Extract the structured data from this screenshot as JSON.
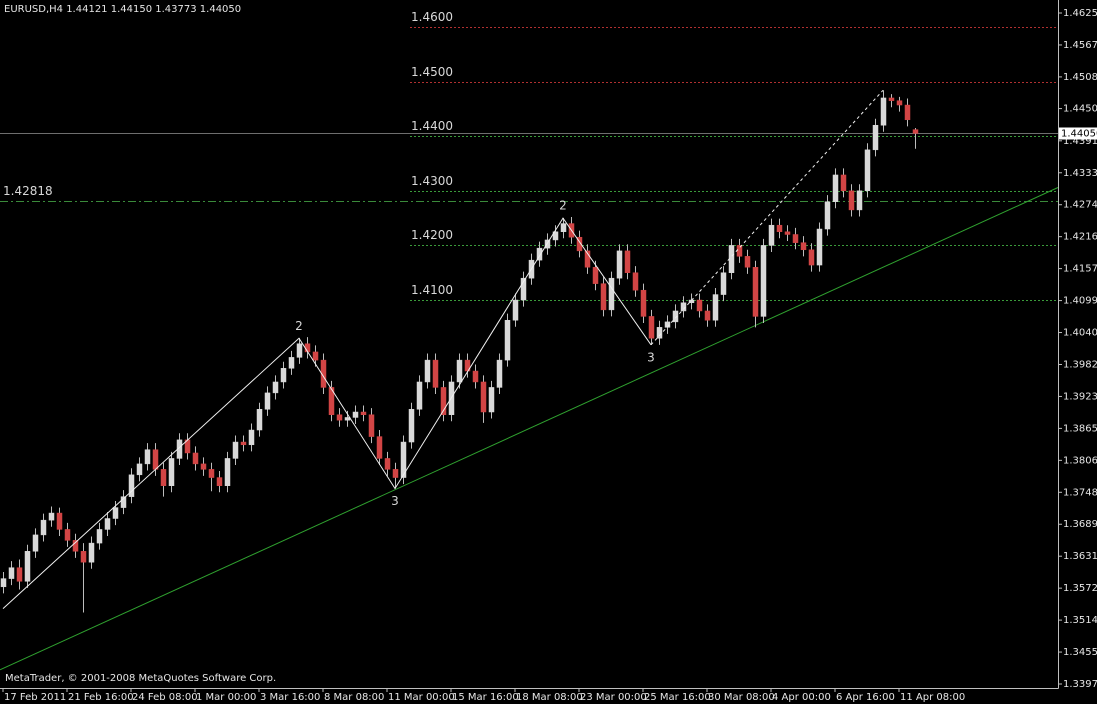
{
  "chart_data": {
    "type": "candlestick",
    "title": "EURUSD,H4  1.44121 1.44150 1.43773 1.44050",
    "footer": "MetaTrader, © 2001-2008 MetaQuotes Software Corp.",
    "up_color": "#d9d9d9",
    "down_color": "#d24545",
    "wick_color": "#bdbdbd",
    "ylim": [
      1.33897,
      1.46493
    ],
    "yticks": [
      1.46255,
      {
        "value": 1.4567,
        "label": "1.45670"
      },
      1.45085,
      1.44505,
      1.43915,
      {
        "value": 1.4333,
        "label": "1.43330"
      },
      1.42745,
      {
        "value": 1.4216,
        "label": "1.42160"
      },
      1.41575,
      {
        "value": 1.4099,
        "label": "1.40990"
      },
      1.40405,
      {
        "value": 1.3982,
        "label": "1.39820"
      },
      1.39235,
      {
        "value": 1.3865,
        "label": "1.38650"
      },
      1.38065,
      {
        "value": 1.3748,
        "label": "1.37480"
      },
      1.36895,
      {
        "value": 1.3631,
        "label": "1.36310"
      },
      1.35725,
      {
        "value": 1.3514,
        "label": "1.35140"
      },
      1.34555,
      {
        "value": 1.3397,
        "label": "1.33970"
      }
    ],
    "xlim": [
      -0.375,
      131.875
    ],
    "xticks": [
      {
        "value": 0,
        "label": "17 Feb 2011"
      },
      {
        "value": 8,
        "label": "21 Feb 16:00"
      },
      {
        "value": 16,
        "label": "24 Feb 08:00"
      },
      {
        "value": 24,
        "label": "1 Mar 00:00"
      },
      {
        "value": 32,
        "label": "3 Mar 16:00"
      },
      {
        "value": 40,
        "label": "8 Mar 08:00"
      },
      {
        "value": 48,
        "label": "11 Mar 00:00"
      },
      {
        "value": 56,
        "label": "15 Mar 16:00"
      },
      {
        "value": 64,
        "label": "18 Mar 08:00"
      },
      {
        "value": 72,
        "label": "23 Mar 00:00"
      },
      {
        "value": 80,
        "label": "25 Mar 16:00"
      },
      {
        "value": 88,
        "label": "30 Mar 08:00"
      },
      {
        "value": 96,
        "label": "4 Apr 00:00"
      },
      {
        "value": 104,
        "label": "6 Apr 16:00"
      },
      {
        "value": 112,
        "label": "11 Apr 08:00"
      }
    ],
    "levels": [
      {
        "value": 1.46,
        "label": "1.4600",
        "color": "#b03030"
      },
      {
        "value": 1.45,
        "label": "1.4500",
        "color": "#b03030"
      },
      {
        "value": 1.44,
        "label": "1.4400",
        "color": "#3a9a3a"
      },
      {
        "value": 1.43,
        "label": "1.4300",
        "color": "#3a9a3a"
      },
      {
        "value": 1.42,
        "label": "1.4200",
        "color": "#3a9a3a"
      },
      {
        "value": 1.41,
        "label": "1.4100",
        "color": "#3a9a3a"
      }
    ],
    "pivot": 1.42818,
    "pivot_color": "#3a8a3a",
    "current_price": {
      "value": 1.4405,
      "label": "1.44050"
    },
    "trendline": {
      "x": [
        -0.375,
        131.875
      ],
      "y": [
        1.3423,
        1.4306
      ],
      "color": "#2fa02f"
    },
    "wave": {
      "x": [
        0,
        37,
        49,
        70,
        81
      ],
      "y": [
        1.3535,
        1.403,
        1.3755,
        1.425,
        1.4018
      ],
      "labels": [
        null,
        "2",
        "3",
        "2",
        "3"
      ]
    },
    "wave_projection": {
      "x": [
        81,
        110
      ],
      "y": [
        1.4018,
        1.4484
      ]
    },
    "ohlc": [
      [
        1.3575,
        1.3602,
        1.3563,
        1.359
      ],
      [
        1.359,
        1.3622,
        1.3578,
        1.361
      ],
      [
        1.361,
        1.3625,
        1.357,
        1.3585
      ],
      [
        1.3585,
        1.3652,
        1.3573,
        1.364
      ],
      [
        1.364,
        1.3682,
        1.3628,
        1.367
      ],
      [
        1.367,
        1.3709,
        1.3658,
        1.3697
      ],
      [
        1.3697,
        1.3722,
        1.3685,
        1.371
      ],
      [
        1.371,
        1.372,
        1.3668,
        1.368
      ],
      [
        1.368,
        1.3692,
        1.3648,
        1.366
      ],
      [
        1.366,
        1.3672,
        1.3628,
        1.364
      ],
      [
        1.364,
        1.3655,
        1.3528,
        1.362
      ],
      [
        1.362,
        1.3667,
        1.3608,
        1.3655
      ],
      [
        1.3655,
        1.3692,
        1.3643,
        1.368
      ],
      [
        1.368,
        1.3712,
        1.3668,
        1.37
      ],
      [
        1.37,
        1.3732,
        1.3688,
        1.372
      ],
      [
        1.372,
        1.3752,
        1.3708,
        1.374
      ],
      [
        1.374,
        1.3792,
        1.3728,
        1.378
      ],
      [
        1.378,
        1.3812,
        1.3768,
        1.38
      ],
      [
        1.38,
        1.3838,
        1.3788,
        1.3826
      ],
      [
        1.3826,
        1.3838,
        1.3778,
        1.379
      ],
      [
        1.379,
        1.3802,
        1.374,
        1.376
      ],
      [
        1.376,
        1.3822,
        1.3748,
        1.381
      ],
      [
        1.381,
        1.3856,
        1.3798,
        1.3844
      ],
      [
        1.3844,
        1.3856,
        1.3808,
        1.382
      ],
      [
        1.382,
        1.3832,
        1.3788,
        1.38
      ],
      [
        1.38,
        1.3812,
        1.3778,
        1.379
      ],
      [
        1.379,
        1.3802,
        1.375,
        1.3775
      ],
      [
        1.3775,
        1.3787,
        1.3748,
        1.376
      ],
      [
        1.376,
        1.3822,
        1.3748,
        1.381
      ],
      [
        1.381,
        1.3852,
        1.3798,
        1.384
      ],
      [
        1.384,
        1.3852,
        1.3823,
        1.3835
      ],
      [
        1.3835,
        1.3874,
        1.3823,
        1.3862
      ],
      [
        1.3862,
        1.3912,
        1.385,
        1.39
      ],
      [
        1.39,
        1.3942,
        1.3888,
        1.393
      ],
      [
        1.393,
        1.3962,
        1.3918,
        1.395
      ],
      [
        1.395,
        1.3987,
        1.3938,
        1.3975
      ],
      [
        1.3975,
        1.4007,
        1.3963,
        1.3995
      ],
      [
        1.3995,
        1.403,
        1.3983,
        1.402
      ],
      [
        1.402,
        1.4032,
        1.3993,
        1.4005
      ],
      [
        1.4005,
        1.4017,
        1.3978,
        1.399
      ],
      [
        1.399,
        1.4002,
        1.3928,
        1.394
      ],
      [
        1.394,
        1.3952,
        1.3878,
        1.389
      ],
      [
        1.389,
        1.3902,
        1.3868,
        1.388
      ],
      [
        1.388,
        1.3897,
        1.3868,
        1.3885
      ],
      [
        1.3885,
        1.3907,
        1.3873,
        1.3895
      ],
      [
        1.3895,
        1.3907,
        1.3878,
        1.389
      ],
      [
        1.389,
        1.3902,
        1.3838,
        1.385
      ],
      [
        1.385,
        1.3862,
        1.3798,
        1.381
      ],
      [
        1.381,
        1.3822,
        1.3778,
        1.379
      ],
      [
        1.379,
        1.3802,
        1.3755,
        1.3775
      ],
      [
        1.3775,
        1.3852,
        1.3763,
        1.384
      ],
      [
        1.384,
        1.3912,
        1.3828,
        1.39
      ],
      [
        1.39,
        1.3962,
        1.3888,
        1.395
      ],
      [
        1.395,
        1.4002,
        1.3938,
        1.399
      ],
      [
        1.399,
        1.4002,
        1.3928,
        1.394
      ],
      [
        1.394,
        1.3952,
        1.3878,
        1.389
      ],
      [
        1.389,
        1.3962,
        1.3878,
        1.395
      ],
      [
        1.395,
        1.4002,
        1.3938,
        1.399
      ],
      [
        1.399,
        1.4002,
        1.3958,
        1.397
      ],
      [
        1.397,
        1.3982,
        1.3938,
        1.395
      ],
      [
        1.395,
        1.3962,
        1.3875,
        1.3895
      ],
      [
        1.3895,
        1.3952,
        1.3883,
        1.394
      ],
      [
        1.394,
        1.4002,
        1.3928,
        1.399
      ],
      [
        1.399,
        1.4075,
        1.3978,
        1.4063
      ],
      [
        1.4063,
        1.4112,
        1.4051,
        1.41
      ],
      [
        1.41,
        1.4152,
        1.4088,
        1.414
      ],
      [
        1.414,
        1.4185,
        1.4128,
        1.4173
      ],
      [
        1.4173,
        1.4207,
        1.4161,
        1.4195
      ],
      [
        1.4195,
        1.4222,
        1.4183,
        1.421
      ],
      [
        1.421,
        1.4237,
        1.4198,
        1.4225
      ],
      [
        1.4225,
        1.425,
        1.4213,
        1.424
      ],
      [
        1.424,
        1.4252,
        1.4203,
        1.4215
      ],
      [
        1.4215,
        1.4227,
        1.4178,
        1.419
      ],
      [
        1.419,
        1.4202,
        1.4148,
        1.416
      ],
      [
        1.416,
        1.4172,
        1.4118,
        1.413
      ],
      [
        1.413,
        1.4142,
        1.407,
        1.4082
      ],
      [
        1.4082,
        1.4152,
        1.407,
        1.414
      ],
      [
        1.414,
        1.4202,
        1.4128,
        1.419
      ],
      [
        1.419,
        1.4202,
        1.4138,
        1.415
      ],
      [
        1.415,
        1.4162,
        1.4106,
        1.4118
      ],
      [
        1.4118,
        1.413,
        1.4058,
        1.407
      ],
      [
        1.407,
        1.4082,
        1.4018,
        1.403
      ],
      [
        1.403,
        1.4062,
        1.4018,
        1.405
      ],
      [
        1.405,
        1.4072,
        1.4038,
        1.406
      ],
      [
        1.406,
        1.4092,
        1.4048,
        1.408
      ],
      [
        1.408,
        1.4107,
        1.4068,
        1.4095
      ],
      [
        1.4095,
        1.4112,
        1.4083,
        1.41
      ],
      [
        1.41,
        1.4112,
        1.4068,
        1.408
      ],
      [
        1.408,
        1.4092,
        1.4051,
        1.4063
      ],
      [
        1.4063,
        1.4122,
        1.4051,
        1.411
      ],
      [
        1.411,
        1.4162,
        1.4098,
        1.415
      ],
      [
        1.415,
        1.4212,
        1.4138,
        1.42
      ],
      [
        1.42,
        1.4212,
        1.4168,
        1.418
      ],
      [
        1.418,
        1.4192,
        1.4148,
        1.416
      ],
      [
        1.416,
        1.4172,
        1.405,
        1.407
      ],
      [
        1.407,
        1.4212,
        1.4058,
        1.42
      ],
      [
        1.42,
        1.4249,
        1.4188,
        1.4237
      ],
      [
        1.4237,
        1.4249,
        1.4213,
        1.4225
      ],
      [
        1.4225,
        1.4237,
        1.4208,
        1.422
      ],
      [
        1.422,
        1.4232,
        1.4193,
        1.4205
      ],
      [
        1.4205,
        1.4217,
        1.418,
        1.4192
      ],
      [
        1.4192,
        1.4204,
        1.4152,
        1.4164
      ],
      [
        1.4164,
        1.4242,
        1.4152,
        1.423
      ],
      [
        1.423,
        1.4292,
        1.4218,
        1.428
      ],
      [
        1.428,
        1.4341,
        1.4268,
        1.4329
      ],
      [
        1.4329,
        1.4341,
        1.4288,
        1.43
      ],
      [
        1.43,
        1.4312,
        1.4253,
        1.4265
      ],
      [
        1.4265,
        1.4312,
        1.4253,
        1.43
      ],
      [
        1.43,
        1.4387,
        1.4288,
        1.4375
      ],
      [
        1.4375,
        1.4432,
        1.4363,
        1.442
      ],
      [
        1.442,
        1.4484,
        1.4408,
        1.447
      ],
      [
        1.447,
        1.4477,
        1.4453,
        1.4465
      ],
      [
        1.4465,
        1.4472,
        1.4445,
        1.4457
      ],
      [
        1.4457,
        1.4469,
        1.4418,
        1.443
      ],
      [
        1.4412,
        1.4415,
        1.4377,
        1.4405
      ]
    ]
  }
}
